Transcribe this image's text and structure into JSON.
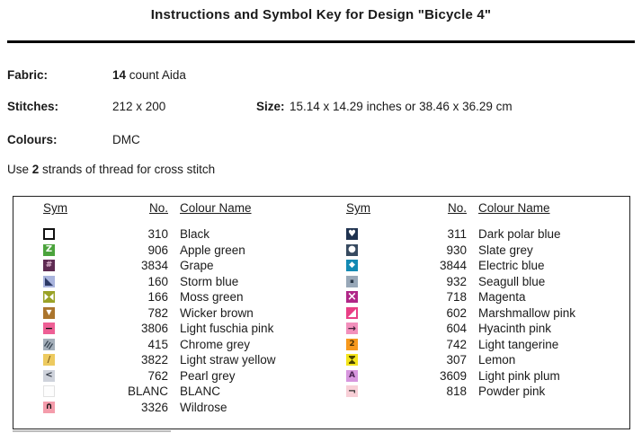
{
  "title": "Instructions and Symbol Key for Design \"Bicycle 4\"",
  "info": {
    "fabric_label": "Fabric:",
    "fabric_value_bold": "14",
    "fabric_value_rest": " count Aida",
    "stitches_label": "Stitches:",
    "stitches_value": "212 x 200",
    "size_label": "Size:",
    "size_value": "15.14 x 14.29 inches or 38.46 x 36.29 cm",
    "colours_label": "Colours:",
    "colours_value": "DMC",
    "strands_prefix": "Use ",
    "strands_bold": "2",
    "strands_suffix": " strands of thread for cross stitch"
  },
  "key": {
    "headers": {
      "sym": "Sym",
      "no": "No.",
      "name": "Colour Name"
    },
    "columns": [
      {
        "entries": [
          {
            "no": "310",
            "name": "Black",
            "sym": {
              "type": "none",
              "bg": "#ffffff",
              "border": "#111111",
              "borderWidth": 2
            }
          },
          {
            "no": "906",
            "name": "Apple green",
            "sym": {
              "type": "char",
              "glyph": "Z",
              "bg": "#4ba33c",
              "fg": "#ffffff",
              "fs": 10
            }
          },
          {
            "no": "3834",
            "name": "Grape",
            "sym": {
              "type": "char",
              "glyph": "#",
              "bg": "#5e2b52",
              "fg": "#e3bcd4",
              "fs": 9
            }
          },
          {
            "no": "160",
            "name": "Storm blue",
            "sym": {
              "type": "tri-ll",
              "bg": "#a9b4dd",
              "fg": "#2c3966"
            }
          },
          {
            "no": "166",
            "name": "Moss green",
            "sym": {
              "type": "bowtie",
              "bg": "#9aa226",
              "fg": "#ffffff"
            }
          },
          {
            "no": "782",
            "name": "Wicker brown",
            "sym": {
              "type": "char",
              "glyph": "▼",
              "bg": "#ab752d",
              "fg": "#ffffff",
              "fs": 8
            }
          },
          {
            "no": "3806",
            "name": "Light fuschia pink",
            "sym": {
              "type": "char",
              "glyph": "−",
              "bg": "#ee5f95",
              "fg": "#111111",
              "fs": 11
            }
          },
          {
            "no": "415",
            "name": "Chrome grey",
            "sym": {
              "type": "hatch",
              "bg": "#a4afba",
              "fg": "#3c4a57"
            }
          },
          {
            "no": "3822",
            "name": "Light straw yellow",
            "sym": {
              "type": "char",
              "glyph": "/",
              "bg": "#edca5f",
              "fg": "#7c5c1c",
              "fs": 10
            }
          },
          {
            "no": "762",
            "name": "Pearl grey",
            "sym": {
              "type": "char",
              "glyph": "<",
              "bg": "#ced2db",
              "fg": "#333a47",
              "fs": 10
            }
          },
          {
            "no": "BLANC",
            "name": "BLANC",
            "sym": {
              "type": "none",
              "bg": "#fdfdfd",
              "border": "#e2e2e2",
              "borderWidth": 1
            }
          },
          {
            "no": "3326",
            "name": "Wildrose",
            "sym": {
              "type": "char",
              "glyph": "∩",
              "bg": "#f49cab",
              "fg": "#111111",
              "fs": 10
            }
          }
        ]
      },
      {
        "entries": [
          {
            "no": "311",
            "name": "Dark polar blue",
            "sym": {
              "type": "char",
              "glyph": "♥",
              "bg": "#203350",
              "fg": "#ffffff",
              "fs": 10
            }
          },
          {
            "no": "930",
            "name": "Slate grey",
            "sym": {
              "type": "char",
              "glyph": "●",
              "bg": "#374a60",
              "fg": "#ffffff",
              "fs": 10
            }
          },
          {
            "no": "3844",
            "name": "Electric blue",
            "sym": {
              "type": "char",
              "glyph": "◆",
              "bg": "#148ab4",
              "fg": "#ffffff",
              "fs": 9
            }
          },
          {
            "no": "932",
            "name": "Seagull blue",
            "sym": {
              "type": "char",
              "glyph": "▪",
              "bg": "#98a8b8",
              "fg": "#2c3a4a",
              "fs": 7
            }
          },
          {
            "no": "718",
            "name": "Magenta",
            "sym": {
              "type": "char",
              "glyph": "×",
              "bg": "#b02687",
              "fg": "#ffffff",
              "fs": 13
            }
          },
          {
            "no": "602",
            "name": "Marshmallow pink",
            "sym": {
              "type": "tri-lr",
              "bg": "#e93f86",
              "fg": "#ffffff"
            }
          },
          {
            "no": "604",
            "name": "Hyacinth pink",
            "sym": {
              "type": "char",
              "glyph": "→",
              "bg": "#f290bc",
              "fg": "#44203a",
              "fs": 11
            }
          },
          {
            "no": "742",
            "name": "Light tangerine",
            "sym": {
              "type": "char",
              "glyph": "2",
              "bg": "#f7991e",
              "fg": "#4c3205",
              "fs": 9
            }
          },
          {
            "no": "307",
            "name": "Lemon",
            "sym": {
              "type": "hourglass",
              "bg": "#f3e41c",
              "fg": "#494400"
            }
          },
          {
            "no": "3609",
            "name": "Light pink plum",
            "sym": {
              "type": "char",
              "glyph": "A",
              "bg": "#d796de",
              "fg": "#4b2453",
              "fs": 9
            }
          },
          {
            "no": "818",
            "name": "Powder pink",
            "sym": {
              "type": "char",
              "glyph": "¬",
              "bg": "#f8cfd7",
              "fg": "#333333",
              "fs": 11
            }
          }
        ]
      }
    ]
  }
}
